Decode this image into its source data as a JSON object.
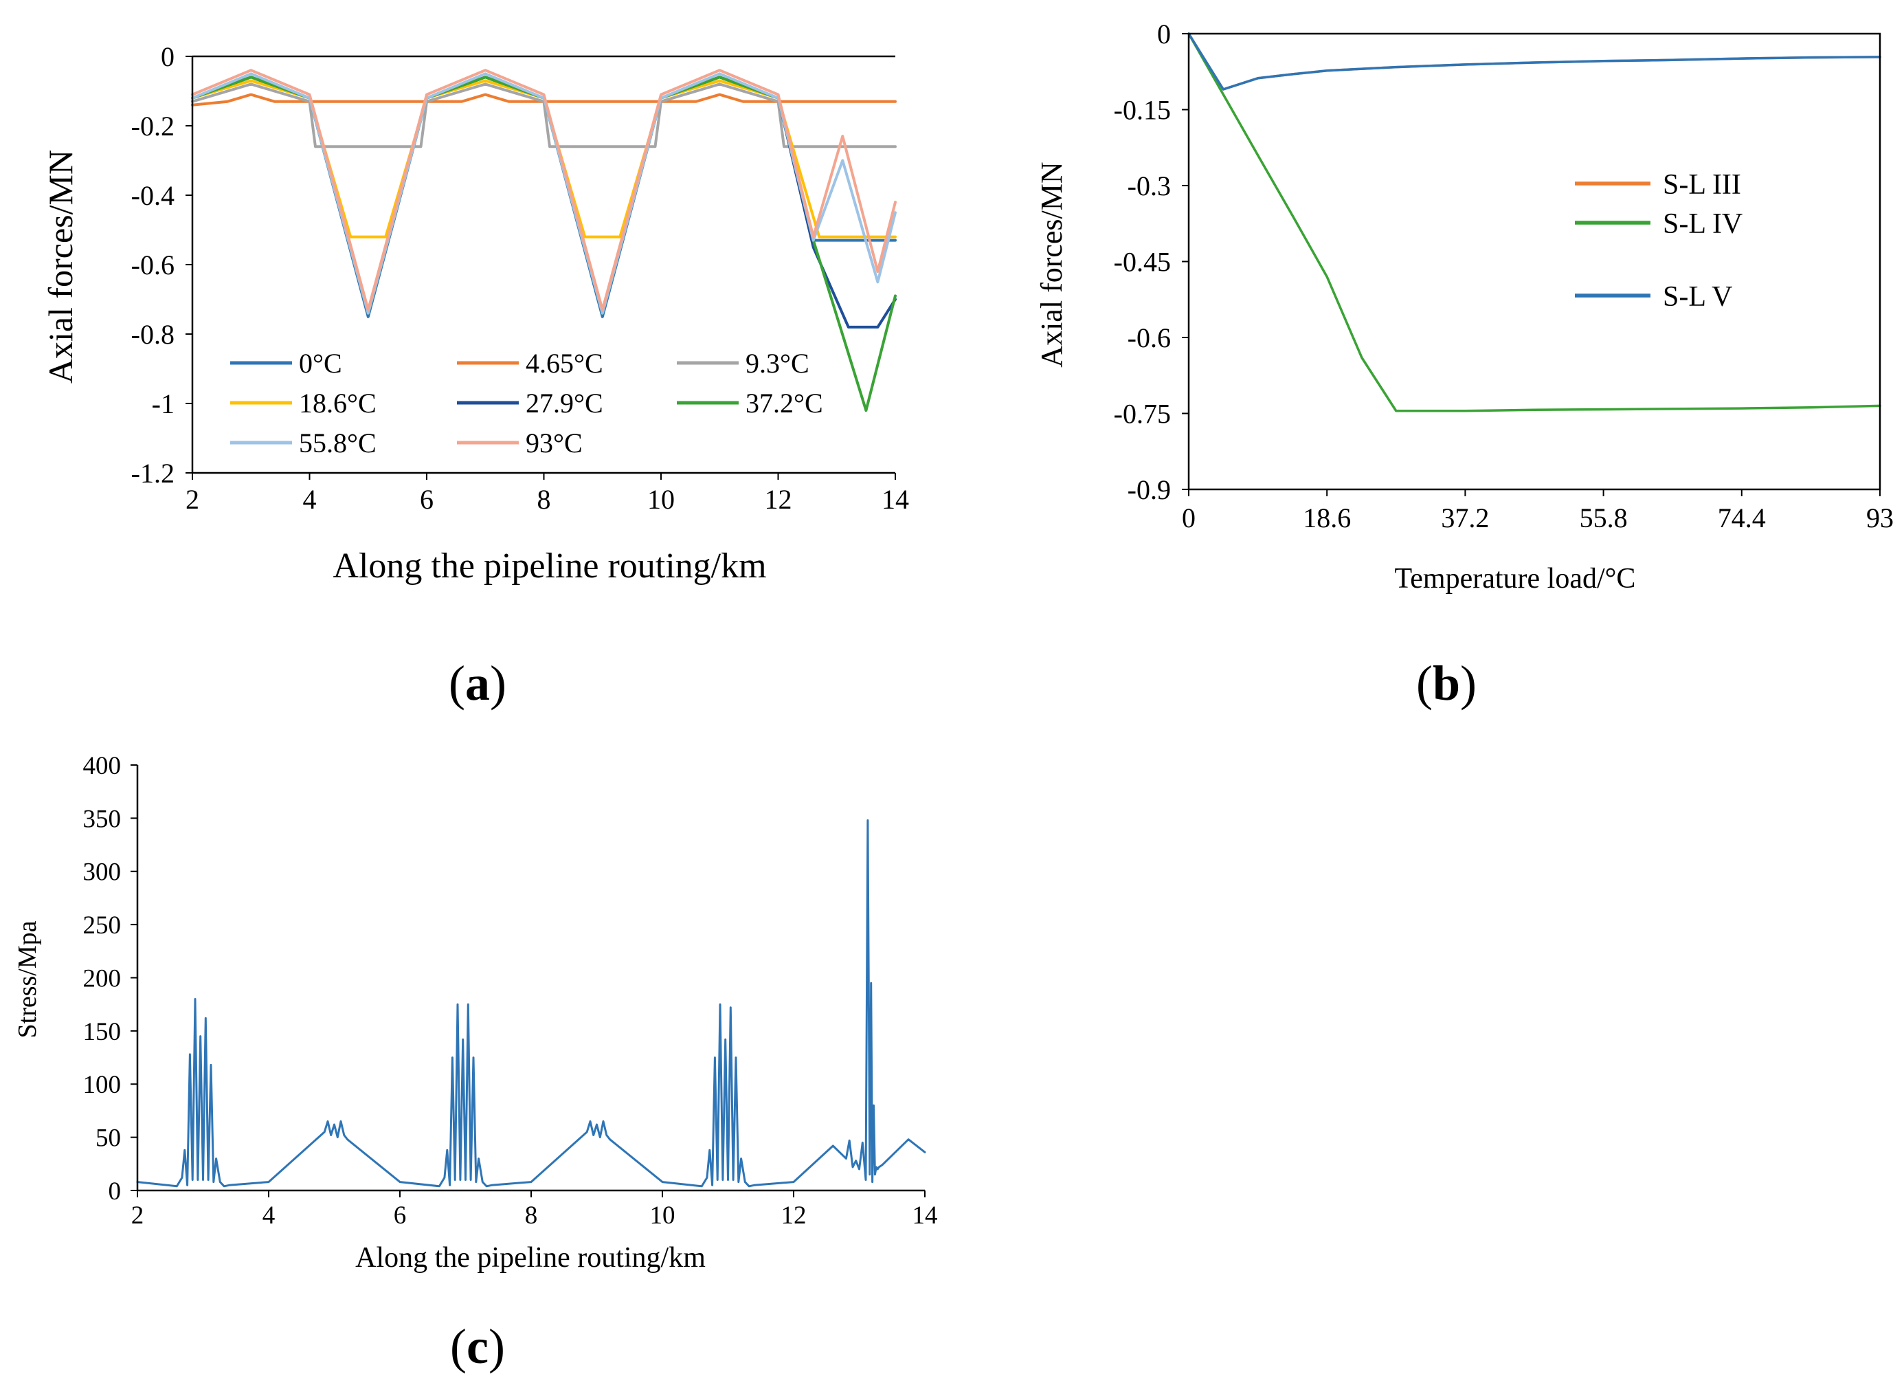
{
  "chart_data": [
    {
      "id": "a",
      "panel_label": "a",
      "type": "line",
      "xlabel": "Along the pipeline routing/km",
      "ylabel": "Axial  forces/MN",
      "xlim": [
        2,
        14
      ],
      "ylim": [
        -1.2,
        0
      ],
      "xticks": [
        2,
        4,
        6,
        8,
        10,
        12,
        14
      ],
      "yticks": [
        0,
        -0.2,
        -0.4,
        -0.6,
        -0.8,
        -1,
        -1.2
      ],
      "ytick_labels": [
        "0",
        "-0.2",
        "-0.4",
        "-0.6",
        "-0.8",
        "-1",
        "-1.2"
      ],
      "legend_position": "lower-left",
      "series": [
        {
          "name": "0°C",
          "color": "#2E75B6",
          "x": [
            2,
            3,
            4,
            5,
            6,
            7,
            8,
            9,
            10,
            11,
            12,
            12.6,
            13.1,
            13.7,
            14
          ],
          "y": [
            -0.12,
            -0.06,
            -0.12,
            -0.75,
            -0.12,
            -0.06,
            -0.12,
            -0.75,
            -0.12,
            -0.06,
            -0.12,
            -0.53,
            -0.53,
            -0.53,
            -0.53
          ]
        },
        {
          "name": "4.65°C",
          "color": "#ED7D31",
          "x": [
            2,
            2.6,
            3,
            3.4,
            4,
            5,
            6,
            6.6,
            7,
            7.4,
            8,
            9,
            10,
            10.6,
            11,
            11.4,
            12,
            13,
            14
          ],
          "y": [
            -0.14,
            -0.13,
            -0.11,
            -0.13,
            -0.13,
            -0.13,
            -0.13,
            -0.13,
            -0.11,
            -0.13,
            -0.13,
            -0.13,
            -0.13,
            -0.13,
            -0.11,
            -0.13,
            -0.13,
            -0.13,
            -0.13
          ]
        },
        {
          "name": "9.3°C",
          "color": "#A5A5A5",
          "x": [
            2,
            3,
            4,
            4.1,
            5,
            5.9,
            6,
            7,
            8,
            8.1,
            9,
            9.9,
            10,
            11,
            12,
            12.1,
            13,
            14
          ],
          "y": [
            -0.13,
            -0.08,
            -0.13,
            -0.26,
            -0.26,
            -0.26,
            -0.13,
            -0.08,
            -0.13,
            -0.26,
            -0.26,
            -0.26,
            -0.13,
            -0.08,
            -0.13,
            -0.26,
            -0.26,
            -0.26
          ]
        },
        {
          "name": "18.6°C",
          "color": "#FFC000",
          "x": [
            2,
            3,
            4,
            4.7,
            5.3,
            6,
            7,
            8,
            8.7,
            9.3,
            10,
            11,
            12,
            12.7,
            13.3,
            14
          ],
          "y": [
            -0.12,
            -0.07,
            -0.12,
            -0.52,
            -0.52,
            -0.12,
            -0.07,
            -0.12,
            -0.52,
            -0.52,
            -0.12,
            -0.07,
            -0.12,
            -0.52,
            -0.52,
            -0.52
          ]
        },
        {
          "name": "27.9°C",
          "color": "#1F4E9A",
          "x": [
            2,
            3,
            4,
            5,
            6,
            7,
            8,
            9,
            10,
            11,
            12,
            12.6,
            13.2,
            13.7,
            14
          ],
          "y": [
            -0.12,
            -0.06,
            -0.12,
            -0.74,
            -0.12,
            -0.06,
            -0.12,
            -0.74,
            -0.12,
            -0.06,
            -0.12,
            -0.55,
            -0.78,
            -0.78,
            -0.7
          ]
        },
        {
          "name": "37.2°C",
          "color": "#3AA335",
          "x": [
            2,
            3,
            4,
            5,
            6,
            7,
            8,
            9,
            10,
            11,
            12,
            12.6,
            13.5,
            14
          ],
          "y": [
            -0.12,
            -0.06,
            -0.12,
            -0.74,
            -0.12,
            -0.06,
            -0.12,
            -0.74,
            -0.12,
            -0.06,
            -0.12,
            -0.53,
            -1.02,
            -0.69
          ]
        },
        {
          "name": "55.8°C",
          "color": "#9DC3E6",
          "x": [
            2,
            3,
            4,
            5,
            6,
            7,
            8,
            9,
            10,
            11,
            12,
            12.6,
            13.1,
            13.7,
            14
          ],
          "y": [
            -0.12,
            -0.05,
            -0.12,
            -0.74,
            -0.12,
            -0.05,
            -0.12,
            -0.74,
            -0.12,
            -0.05,
            -0.12,
            -0.53,
            -0.3,
            -0.65,
            -0.45
          ]
        },
        {
          "name": "93°C",
          "color": "#F4A58F",
          "x": [
            2,
            3,
            4,
            5,
            6,
            7,
            8,
            9,
            10,
            11,
            12,
            12.6,
            13.1,
            13.7,
            14
          ],
          "y": [
            -0.11,
            -0.04,
            -0.11,
            -0.73,
            -0.11,
            -0.04,
            -0.11,
            -0.73,
            -0.11,
            -0.04,
            -0.11,
            -0.52,
            -0.23,
            -0.62,
            -0.42
          ]
        }
      ]
    },
    {
      "id": "b",
      "panel_label": "b",
      "type": "line",
      "xlabel": "Temperature load/°C",
      "ylabel": "Axial forces/MN",
      "xlim": [
        0,
        93
      ],
      "ylim": [
        -0.9,
        0
      ],
      "xticks": [
        0,
        18.6,
        37.2,
        55.8,
        74.4,
        93
      ],
      "xtick_labels": [
        "0",
        "18.6",
        "37.2",
        "55.8",
        "74.4",
        "93"
      ],
      "yticks": [
        0,
        -0.15,
        -0.3,
        -0.45,
        -0.6,
        -0.75,
        -0.9
      ],
      "ytick_labels": [
        "0",
        "-0.15",
        "-0.3",
        "-0.45",
        "-0.6",
        "-0.75",
        "-0.9"
      ],
      "legend_position": "right",
      "series": [
        {
          "name": "S-L III",
          "color": "#ED7D31",
          "x": [
            0,
            4.65,
            9.3,
            14,
            18.6,
            27.9,
            37.2,
            46.5,
            55.8,
            65.1,
            74.4,
            83.7,
            93
          ],
          "y": [
            0,
            -0.11,
            -0.088,
            -0.08,
            -0.073,
            -0.066,
            -0.061,
            -0.057,
            -0.054,
            -0.052,
            -0.049,
            -0.047,
            -0.046
          ]
        },
        {
          "name": "S-L IV",
          "color": "#3AA335",
          "x": [
            0,
            4.65,
            9.3,
            14,
            18.6,
            23.3,
            27.9,
            37.2,
            46.5,
            55.8,
            65.1,
            74.4,
            83.7,
            93
          ],
          "y": [
            0,
            -0.12,
            -0.24,
            -0.36,
            -0.48,
            -0.64,
            -0.745,
            -0.745,
            -0.743,
            -0.742,
            -0.741,
            -0.74,
            -0.738,
            -0.735
          ]
        },
        {
          "name": "S-L V",
          "color": "#2E75B6",
          "x": [
            0,
            4.65,
            9.3,
            14,
            18.6,
            27.9,
            37.2,
            46.5,
            55.8,
            65.1,
            74.4,
            83.7,
            93
          ],
          "y": [
            0,
            -0.11,
            -0.088,
            -0.08,
            -0.073,
            -0.066,
            -0.061,
            -0.057,
            -0.054,
            -0.052,
            -0.049,
            -0.047,
            -0.046
          ]
        }
      ]
    },
    {
      "id": "c",
      "panel_label": "c",
      "type": "line",
      "xlabel": "Along the pipeline routing/km",
      "ylabel": "Stress/Mpa",
      "xlim": [
        2,
        14
      ],
      "ylim": [
        0,
        400
      ],
      "xticks": [
        2,
        4,
        6,
        8,
        10,
        12,
        14
      ],
      "yticks": [
        0,
        50,
        100,
        150,
        200,
        250,
        300,
        350,
        400
      ],
      "series": [
        {
          "name": "Stress",
          "color": "#2E75B6",
          "x": [
            2,
            2.6,
            2.68,
            2.72,
            2.76,
            2.8,
            2.84,
            2.88,
            2.92,
            2.96,
            3.0,
            3.04,
            3.08,
            3.12,
            3.16,
            3.2,
            3.26,
            3.32,
            3.4,
            4,
            4.85,
            4.9,
            4.95,
            5.0,
            5.05,
            5.1,
            5.15,
            5.2,
            6,
            6.6,
            6.68,
            6.72,
            6.76,
            6.8,
            6.84,
            6.88,
            6.92,
            6.96,
            7.0,
            7.04,
            7.08,
            7.12,
            7.16,
            7.2,
            7.26,
            7.32,
            7.4,
            8,
            8.85,
            8.9,
            8.95,
            9.0,
            9.05,
            9.1,
            9.15,
            9.2,
            10,
            10.6,
            10.68,
            10.72,
            10.76,
            10.8,
            10.84,
            10.88,
            10.92,
            10.96,
            11.0,
            11.04,
            11.08,
            11.12,
            11.16,
            11.2,
            11.26,
            11.32,
            11.4,
            12,
            12.6,
            12.8,
            12.85,
            12.9,
            12.95,
            13.0,
            13.05,
            13.1,
            13.13,
            13.16,
            13.18,
            13.2,
            13.22,
            13.24,
            13.26,
            13.28,
            13.3,
            13.35,
            13.75,
            14
          ],
          "y": [
            8,
            4,
            12,
            38,
            5,
            128,
            10,
            180,
            10,
            145,
            10,
            162,
            10,
            118,
            8,
            30,
            8,
            4,
            5,
            8,
            55,
            65,
            52,
            62,
            50,
            65,
            52,
            48,
            8,
            4,
            12,
            38,
            5,
            125,
            10,
            175,
            10,
            142,
            10,
            175,
            10,
            125,
            8,
            30,
            8,
            4,
            5,
            8,
            55,
            65,
            52,
            62,
            50,
            65,
            52,
            48,
            8,
            4,
            12,
            38,
            5,
            125,
            10,
            175,
            10,
            142,
            10,
            172,
            10,
            125,
            8,
            30,
            8,
            4,
            5,
            8,
            42,
            30,
            47,
            22,
            28,
            20,
            45,
            10,
            348,
            15,
            195,
            8,
            80,
            15,
            22,
            20,
            22,
            24,
            48,
            36
          ]
        }
      ]
    }
  ]
}
